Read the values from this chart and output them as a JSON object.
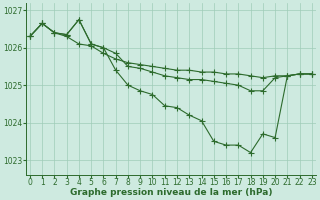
{
  "title": "Graphe pression niveau de la mer (hPa)",
  "bg_color": "#ceeae0",
  "line_color": "#2d6b2d",
  "grid_color": "#a0ccb8",
  "ylim": [
    1022.6,
    1027.2
  ],
  "yticks": [
    1023,
    1024,
    1025,
    1026,
    1027
  ],
  "xlim": [
    -0.3,
    23.3
  ],
  "xticks": [
    0,
    1,
    2,
    3,
    4,
    5,
    6,
    7,
    8,
    9,
    10,
    11,
    12,
    13,
    14,
    15,
    16,
    17,
    18,
    19,
    20,
    21,
    22,
    23
  ],
  "lines": [
    {
      "x": [
        0,
        1,
        2,
        3,
        4,
        5,
        6,
        7,
        8,
        9,
        10,
        11,
        12,
        13,
        14,
        15,
        16,
        17,
        18,
        19,
        20,
        21,
        22,
        23
      ],
      "y": [
        1026.3,
        1026.65,
        1026.4,
        1026.3,
        1026.1,
        1026.05,
        1025.85,
        1025.7,
        1025.6,
        1025.55,
        1025.5,
        1025.45,
        1025.4,
        1025.4,
        1025.35,
        1025.35,
        1025.3,
        1025.3,
        1025.25,
        1025.2,
        1025.25,
        1025.25,
        1025.3,
        1025.3
      ]
    },
    {
      "x": [
        0,
        1,
        2,
        3,
        4,
        5,
        6,
        7,
        8,
        9,
        10,
        11,
        12,
        13,
        14,
        15,
        16,
        17,
        18,
        19,
        20,
        21,
        22,
        23
      ],
      "y": [
        1026.3,
        1026.65,
        1026.4,
        1026.35,
        1026.75,
        1026.1,
        1026.0,
        1025.85,
        1025.5,
        1025.45,
        1025.35,
        1025.25,
        1025.2,
        1025.15,
        1025.15,
        1025.1,
        1025.05,
        1025.0,
        1024.85,
        1024.85,
        1025.2,
        1025.25,
        1025.3,
        1025.3
      ]
    },
    {
      "x": [
        0,
        1,
        2,
        3,
        4,
        5,
        6,
        7,
        8,
        9,
        10,
        11,
        12,
        13,
        14,
        15,
        16,
        17,
        18,
        19,
        20,
        21,
        22,
        23
      ],
      "y": [
        1026.3,
        1026.65,
        1026.4,
        1026.35,
        1026.75,
        1026.1,
        1026.0,
        1025.4,
        1025.0,
        1024.85,
        1024.75,
        1024.45,
        1024.4,
        1024.2,
        1024.05,
        1023.5,
        1023.4,
        1023.4,
        1023.2,
        1023.7,
        1023.6,
        1025.25,
        1025.3,
        1025.3
      ]
    }
  ],
  "marker": "+",
  "markersize": 4,
  "linewidth": 0.8,
  "title_fontsize": 6.5,
  "tick_fontsize": 5.5
}
